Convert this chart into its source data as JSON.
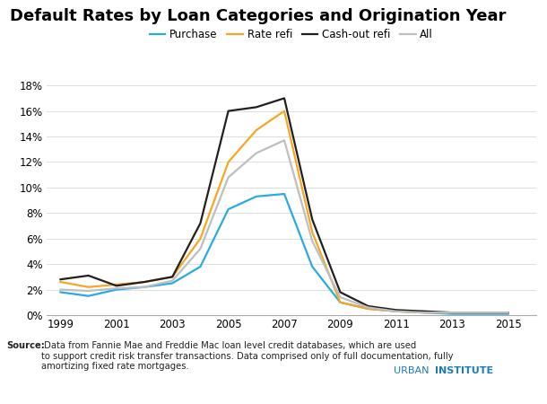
{
  "title": "Default Rates by Loan Categories and Origination Year",
  "years": [
    1999,
    2000,
    2001,
    2002,
    2003,
    2004,
    2005,
    2006,
    2007,
    2008,
    2009,
    2010,
    2011,
    2012,
    2013,
    2014,
    2015
  ],
  "purchase": [
    0.018,
    0.015,
    0.02,
    0.022,
    0.025,
    0.038,
    0.083,
    0.093,
    0.095,
    0.038,
    0.01,
    0.005,
    0.003,
    0.002,
    0.001,
    0.001,
    0.001
  ],
  "rate_refi": [
    0.026,
    0.022,
    0.024,
    0.026,
    0.03,
    0.06,
    0.12,
    0.145,
    0.16,
    0.065,
    0.01,
    0.005,
    0.003,
    0.002,
    0.002,
    0.002,
    0.002
  ],
  "cashout_refi": [
    0.028,
    0.031,
    0.023,
    0.026,
    0.03,
    0.072,
    0.16,
    0.163,
    0.17,
    0.075,
    0.018,
    0.007,
    0.004,
    0.003,
    0.002,
    0.002,
    0.002
  ],
  "all": [
    0.02,
    0.019,
    0.021,
    0.022,
    0.027,
    0.052,
    0.108,
    0.127,
    0.137,
    0.058,
    0.014,
    0.006,
    0.003,
    0.002,
    0.002,
    0.002,
    0.002
  ],
  "colors": {
    "purchase": "#29ABE2",
    "rate_refi": "#F5A623",
    "cashout_refi": "#231F20",
    "all": "#BCBEC0"
  },
  "legend_labels": [
    "Purchase",
    "Rate refi",
    "Cash-out refi",
    "All"
  ],
  "ylim": [
    0,
    0.19
  ],
  "yticks": [
    0.0,
    0.02,
    0.04,
    0.06,
    0.08,
    0.1,
    0.12,
    0.14,
    0.16,
    0.18
  ],
  "xticks": [
    1999,
    2001,
    2003,
    2005,
    2007,
    2009,
    2011,
    2013,
    2015
  ],
  "source_bold": "Source:",
  "source_text": " Data from Fannie Mae and Freddie Mac loan level credit databases, which are used\nto support credit risk transfer transactions. Data comprised only of full documentation, fully\namortizing fixed rate mortgages.",
  "watermark_light": "URBAN",
  "watermark_bold": "INSTITUTE",
  "background_color": "#FFFFFF",
  "line_width": 1.6,
  "title_fontsize": 13,
  "legend_fontsize": 8.5,
  "tick_fontsize": 8.5,
  "source_fontsize": 7.2
}
